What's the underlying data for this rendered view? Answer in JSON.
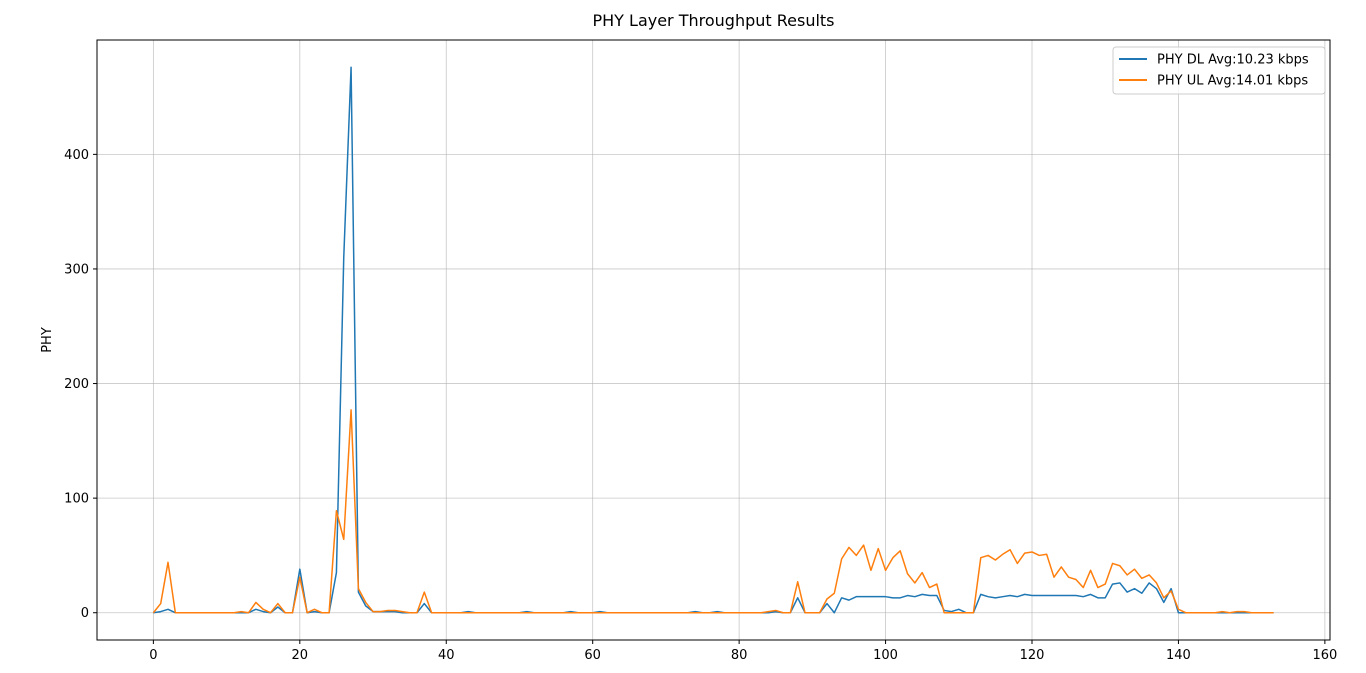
{
  "chart_data": {
    "type": "line",
    "title": "PHY Layer Throughput Results",
    "xlabel": "",
    "ylabel": "PHY",
    "xlim": [
      -7.7,
      160.7
    ],
    "ylim": [
      -23.8,
      499.8
    ],
    "xticks": [
      0,
      20,
      40,
      60,
      80,
      100,
      120,
      140,
      160
    ],
    "yticks": [
      0,
      100,
      200,
      300,
      400
    ],
    "grid": true,
    "legend_position": "top-right",
    "series": [
      {
        "name": "PHY DL Avg:10.23 kbps",
        "color": "#1f77b4",
        "x": [
          0,
          1,
          2,
          3,
          4,
          5,
          6,
          7,
          8,
          9,
          10,
          11,
          12,
          13,
          14,
          15,
          16,
          17,
          18,
          19,
          20,
          21,
          22,
          23,
          24,
          25,
          26,
          27,
          28,
          29,
          30,
          31,
          32,
          33,
          34,
          35,
          36,
          37,
          38,
          39,
          40,
          41,
          42,
          43,
          44,
          45,
          46,
          47,
          48,
          49,
          50,
          51,
          52,
          53,
          54,
          55,
          56,
          57,
          58,
          59,
          60,
          61,
          62,
          63,
          64,
          65,
          66,
          67,
          68,
          69,
          70,
          71,
          72,
          73,
          74,
          75,
          76,
          77,
          78,
          79,
          80,
          81,
          82,
          83,
          84,
          85,
          86,
          87,
          88,
          89,
          90,
          91,
          92,
          93,
          94,
          95,
          96,
          97,
          98,
          99,
          100,
          101,
          102,
          103,
          104,
          105,
          106,
          107,
          108,
          109,
          110,
          111,
          112,
          113,
          114,
          115,
          116,
          117,
          118,
          119,
          120,
          121,
          122,
          123,
          124,
          125,
          126,
          127,
          128,
          129,
          130,
          131,
          132,
          133,
          134,
          135,
          136,
          137,
          138,
          139,
          140,
          141,
          142,
          143,
          144,
          145,
          146,
          147,
          148,
          149,
          150,
          151,
          152,
          153
        ],
        "values": [
          0,
          1,
          3,
          0,
          0,
          0,
          0,
          0,
          0,
          0,
          0,
          0,
          0,
          0,
          3,
          1,
          0,
          5,
          0,
          0,
          38,
          0,
          1,
          0,
          0,
          35,
          310,
          476,
          18,
          6,
          1,
          1,
          1,
          1,
          0,
          0,
          0,
          8,
          0,
          0,
          0,
          0,
          0,
          1,
          0,
          0,
          0,
          0,
          0,
          0,
          0,
          1,
          0,
          0,
          0,
          0,
          0,
          1,
          0,
          0,
          0,
          1,
          0,
          0,
          0,
          0,
          0,
          0,
          0,
          0,
          0,
          0,
          0,
          0,
          1,
          0,
          0,
          1,
          0,
          0,
          0,
          0,
          0,
          0,
          0,
          1,
          0,
          0,
          13,
          0,
          0,
          0,
          8,
          0,
          13,
          11,
          14,
          14,
          14,
          14,
          14,
          13,
          13,
          15,
          14,
          16,
          15,
          15,
          2,
          1,
          3,
          0,
          0,
          16,
          14,
          13,
          14,
          15,
          14,
          16,
          15,
          15,
          15,
          15,
          15,
          15,
          15,
          14,
          16,
          13,
          13,
          25,
          26,
          18,
          21,
          17,
          26,
          21,
          9,
          21,
          0,
          0,
          0,
          0,
          0,
          0,
          0,
          0,
          0,
          0,
          0,
          0,
          0,
          0
        ]
      },
      {
        "name": "PHY UL Avg:14.01 kbps",
        "color": "#ff7f0e",
        "x": [
          0,
          1,
          2,
          3,
          4,
          5,
          6,
          7,
          8,
          9,
          10,
          11,
          12,
          13,
          14,
          15,
          16,
          17,
          18,
          19,
          20,
          21,
          22,
          23,
          24,
          25,
          26,
          27,
          28,
          29,
          30,
          31,
          32,
          33,
          34,
          35,
          36,
          37,
          38,
          39,
          40,
          41,
          42,
          43,
          44,
          45,
          46,
          47,
          48,
          49,
          50,
          51,
          52,
          53,
          54,
          55,
          56,
          57,
          58,
          59,
          60,
          61,
          62,
          63,
          64,
          65,
          66,
          67,
          68,
          69,
          70,
          71,
          72,
          73,
          74,
          75,
          76,
          77,
          78,
          79,
          80,
          81,
          82,
          83,
          84,
          85,
          86,
          87,
          88,
          89,
          90,
          91,
          92,
          93,
          94,
          95,
          96,
          97,
          98,
          99,
          100,
          101,
          102,
          103,
          104,
          105,
          106,
          107,
          108,
          109,
          110,
          111,
          112,
          113,
          114,
          115,
          116,
          117,
          118,
          119,
          120,
          121,
          122,
          123,
          124,
          125,
          126,
          127,
          128,
          129,
          130,
          131,
          132,
          133,
          134,
          135,
          136,
          137,
          138,
          139,
          140,
          141,
          142,
          143,
          144,
          145,
          146,
          147,
          148,
          149,
          150,
          151,
          152,
          153
        ],
        "values": [
          0,
          8,
          44,
          0,
          0,
          0,
          0,
          0,
          0,
          0,
          0,
          0,
          1,
          0,
          9,
          3,
          0,
          8,
          0,
          0,
          31,
          0,
          3,
          0,
          0,
          89,
          64,
          177,
          21,
          9,
          1,
          1,
          2,
          2,
          1,
          0,
          0,
          18,
          0,
          0,
          0,
          0,
          0,
          0,
          0,
          0,
          0,
          0,
          0,
          0,
          0,
          0,
          0,
          0,
          0,
          0,
          0,
          0,
          0,
          0,
          0,
          0,
          0,
          0,
          0,
          0,
          0,
          0,
          0,
          0,
          0,
          0,
          0,
          0,
          0,
          0,
          0,
          0,
          0,
          0,
          0,
          0,
          0,
          0,
          1,
          2,
          0,
          0,
          27,
          0,
          0,
          0,
          12,
          17,
          47,
          57,
          50,
          59,
          37,
          56,
          37,
          48,
          54,
          34,
          26,
          35,
          22,
          25,
          0,
          0,
          0,
          0,
          0,
          48,
          50,
          46,
          51,
          55,
          43,
          52,
          53,
          50,
          51,
          31,
          40,
          31,
          29,
          22,
          37,
          22,
          25,
          43,
          41,
          33,
          38,
          30,
          33,
          26,
          13,
          19,
          3,
          0,
          0,
          0,
          0,
          0,
          1,
          0,
          1,
          1,
          0,
          0,
          0,
          0
        ]
      }
    ]
  }
}
